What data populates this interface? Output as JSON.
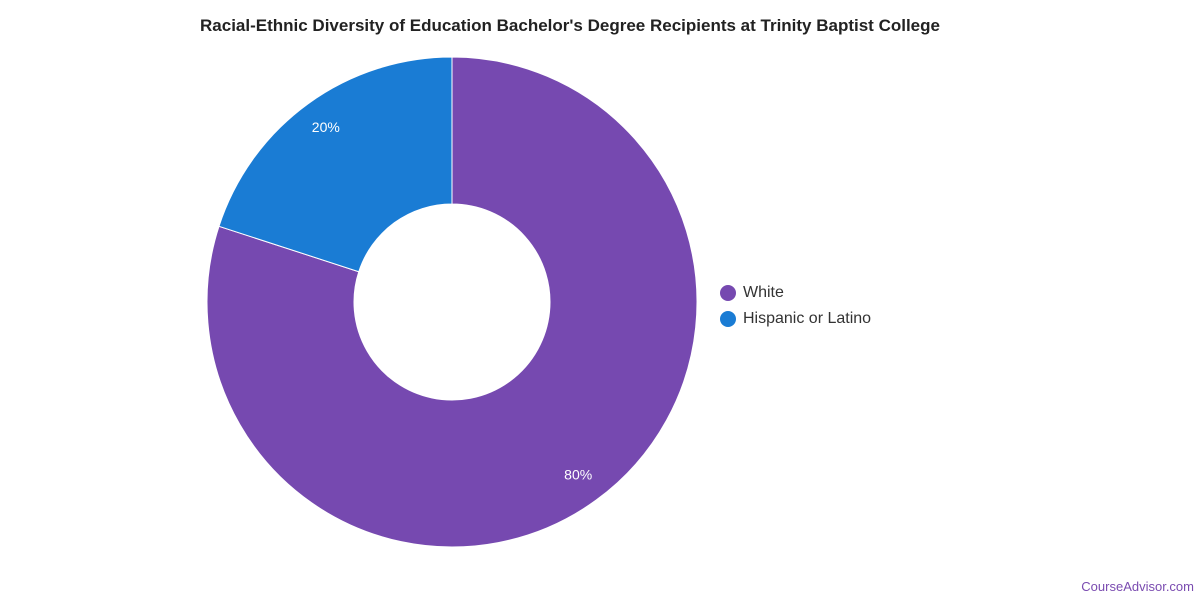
{
  "chart_data": {
    "type": "pie",
    "title": "Racial-Ethnic Diversity of Education Bachelor's Degree Recipients at Trinity Baptist College",
    "series": [
      {
        "name": "White",
        "value": 80,
        "label": "80%",
        "color": "#7649b0"
      },
      {
        "name": "Hispanic or Latino",
        "value": 20,
        "label": "20%",
        "color": "#1a7cd4"
      }
    ],
    "legend_position": "right",
    "donut": true
  },
  "legend": {
    "items": [
      {
        "label": "White",
        "color": "#7649b0"
      },
      {
        "label": "Hispanic or Latino",
        "color": "#1a7cd4"
      }
    ]
  },
  "footer": {
    "watermark": "CourseAdvisor.com"
  }
}
